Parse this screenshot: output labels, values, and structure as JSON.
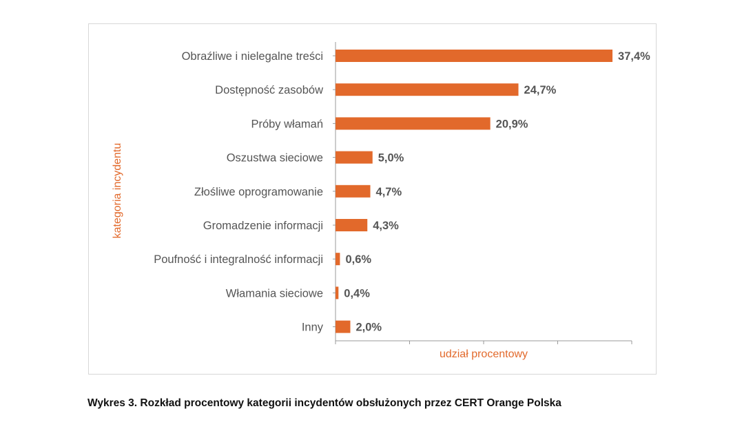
{
  "caption": "Wykres 3. Rozkład procentowy kategorii incydentów obsłużonych przez CERT Orange Polska",
  "chart_data": {
    "type": "bar",
    "orientation": "horizontal",
    "categories": [
      "Obraźliwe i nielegalne treści",
      "Dostępność zasobów",
      "Próby włamań",
      "Oszustwa sieciowe",
      "Złośliwe oprogramowanie",
      "Gromadzenie informacji",
      "Poufność i integralność informacji",
      "Włamania sieciowe",
      "Inny"
    ],
    "values": [
      37.4,
      24.7,
      20.9,
      5.0,
      4.7,
      4.3,
      0.6,
      0.4,
      2.0
    ],
    "value_labels": [
      "37,4%",
      "24,7%",
      "20,9%",
      "5,0%",
      "4,7%",
      "4,3%",
      "0,6%",
      "0,4%",
      "2,0%"
    ],
    "xlabel": "udział procentowy",
    "ylabel": "kategoria incydentu",
    "xlim": [
      0,
      40
    ],
    "x_tick_count": 5,
    "grid": false,
    "colors": {
      "bar": "#e2692b",
      "axis_title": "#e2692b",
      "text": "#555555",
      "axis": "#999999"
    }
  }
}
